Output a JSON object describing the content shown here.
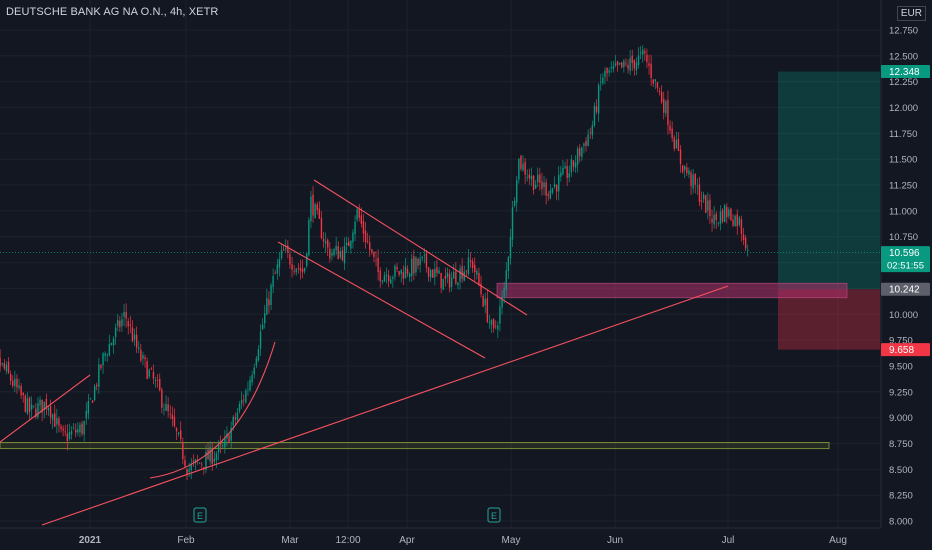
{
  "header": {
    "symbol_title": "DEUTSCHE BANK AG NA O.N., 4h, XETR",
    "currency": "EUR"
  },
  "chart_data": {
    "type": "candlestick",
    "y_ticks": [
      "12.750",
      "12.500",
      "12.250",
      "12.000",
      "11.750",
      "11.500",
      "11.250",
      "11.000",
      "10.750",
      "10.500",
      "10.250",
      "10.000",
      "9.750",
      "9.500",
      "9.250",
      "9.000",
      "8.750",
      "8.500",
      "8.250",
      "8.000"
    ],
    "x_ticks": [
      "2021",
      "Feb",
      "Mar",
      "12:00",
      "Apr",
      "May",
      "Jun",
      "Jul",
      "Aug"
    ],
    "ylim": [
      7.95,
      12.9
    ],
    "price_labels": [
      {
        "value": "12.348",
        "kind": "target",
        "color": "#089981"
      },
      {
        "value": "10.596",
        "kind": "last",
        "color": "#089981",
        "countdown": "02:51:55"
      },
      {
        "value": "10.242",
        "kind": "entry",
        "color": "#5d606b"
      },
      {
        "value": "9.658",
        "kind": "stop",
        "color": "#f23645"
      }
    ],
    "earnings_markers": [
      "E",
      "E"
    ],
    "colors": {
      "up": "#089981",
      "down": "#f23645",
      "trendline": "#f7525f",
      "support": "#b2c73a",
      "zone": "#b0306a"
    },
    "price_path": [
      {
        "date": "2020-12-01",
        "close": 9.7
      },
      {
        "date": "2020-12-08",
        "close": 9.45
      },
      {
        "date": "2020-12-15",
        "close": 9.05
      },
      {
        "date": "2020-12-20",
        "close": 9.15
      },
      {
        "date": "2020-12-24",
        "close": 8.8
      },
      {
        "date": "2020-12-30",
        "close": 8.9
      },
      {
        "date": "2021-01-05",
        "close": 9.6
      },
      {
        "date": "2021-01-11",
        "close": 10.0
      },
      {
        "date": "2021-01-15",
        "close": 9.6
      },
      {
        "date": "2021-01-20",
        "close": 9.3
      },
      {
        "date": "2021-01-26",
        "close": 8.8
      },
      {
        "date": "2021-01-29",
        "close": 8.5
      },
      {
        "date": "2021-02-03",
        "close": 8.6
      },
      {
        "date": "2021-02-08",
        "close": 8.7
      },
      {
        "date": "2021-02-15",
        "close": 9.3
      },
      {
        "date": "2021-02-22",
        "close": 10.3
      },
      {
        "date": "2021-02-25",
        "close": 10.6
      },
      {
        "date": "2021-03-03",
        "close": 10.4
      },
      {
        "date": "2021-03-05",
        "close": 11.1
      },
      {
        "date": "2021-03-10",
        "close": 10.6
      },
      {
        "date": "2021-03-15",
        "close": 10.6
      },
      {
        "date": "2021-03-18",
        "close": 11.0
      },
      {
        "date": "2021-03-24",
        "close": 10.4
      },
      {
        "date": "2021-03-30",
        "close": 10.4
      },
      {
        "date": "2021-04-06",
        "close": 10.5
      },
      {
        "date": "2021-04-12",
        "close": 10.3
      },
      {
        "date": "2021-04-20",
        "close": 10.5
      },
      {
        "date": "2021-04-26",
        "close": 9.8
      },
      {
        "date": "2021-04-29",
        "close": 10.2
      },
      {
        "date": "2021-05-03",
        "close": 11.5
      },
      {
        "date": "2021-05-07",
        "close": 11.3
      },
      {
        "date": "2021-05-12",
        "close": 11.2
      },
      {
        "date": "2021-05-18",
        "close": 11.4
      },
      {
        "date": "2021-05-24",
        "close": 11.8
      },
      {
        "date": "2021-05-27",
        "close": 12.3
      },
      {
        "date": "2021-06-03",
        "close": 12.4
      },
      {
        "date": "2021-06-08",
        "close": 12.5
      },
      {
        "date": "2021-06-14",
        "close": 12.0
      },
      {
        "date": "2021-06-18",
        "close": 11.5
      },
      {
        "date": "2021-06-23",
        "close": 11.2
      },
      {
        "date": "2021-06-28",
        "close": 10.9
      },
      {
        "date": "2021-07-01",
        "close": 11.0
      },
      {
        "date": "2021-07-05",
        "close": 10.9
      },
      {
        "date": "2021-07-08",
        "close": 10.6
      }
    ],
    "drawings": {
      "support_band": [
        8.7,
        8.76
      ],
      "demand_zone": [
        10.16,
        10.3
      ],
      "long_position": {
        "target": 12.348,
        "entry": 10.242,
        "stop": 9.658
      }
    }
  }
}
